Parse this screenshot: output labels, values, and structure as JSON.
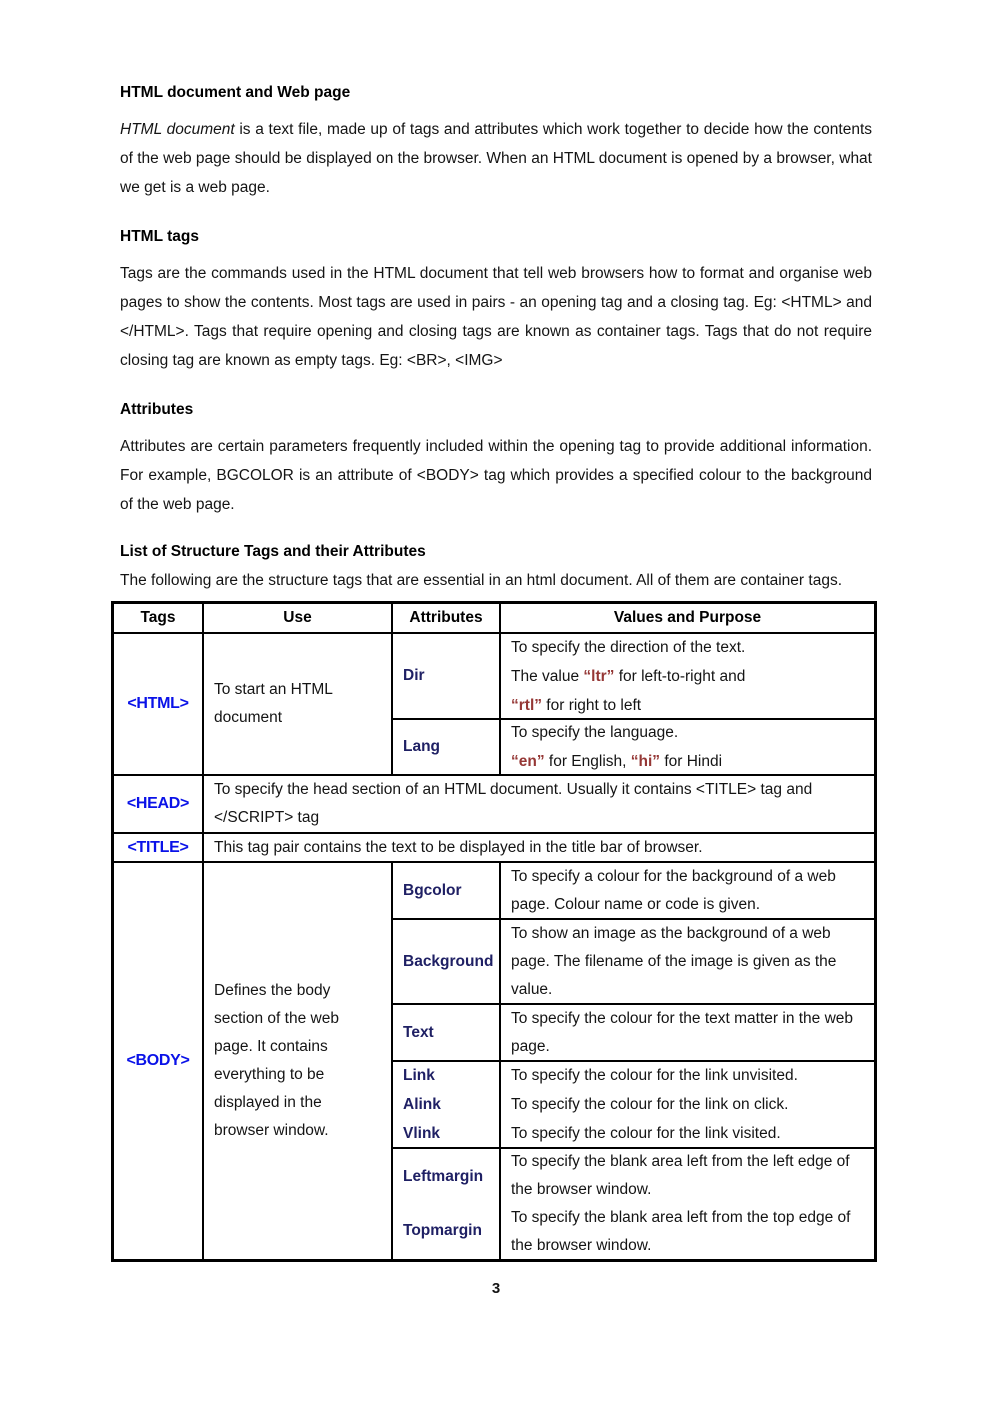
{
  "colors": {
    "tag_blue": "#0a12e8",
    "attr_navy": "#1f2064",
    "value_red": "#953735"
  },
  "sections": {
    "s1": {
      "heading": "HTML document and Web page",
      "para_italic": "HTML document",
      "para_rest": " is a text file, made up of tags and attributes which work together to decide how the contents of the web page should be displayed on the browser. When an HTML document is opened by a browser, what we get is a web page."
    },
    "s2": {
      "heading": "HTML tags",
      "para": "Tags are the commands used in the HTML document that tell web browsers how to format and organise web pages to show the contents. Most tags are used in pairs - an opening tag and a closing tag. Eg: <HTML> and </HTML>. Tags that require opening and closing tags are known as container tags. Tags that do not require closing tag are known as empty tags. Eg: <BR>, <IMG>"
    },
    "s3": {
      "heading": "Attributes",
      "para": "Attributes are certain parameters frequently included within the opening tag to provide additional information. For example, BGCOLOR is an attribute of <BODY> tag which provides a specified colour to the background of the web page."
    },
    "s4": {
      "heading": "List of Structure Tags and their Attributes",
      "para": "The following are the structure tags that are essential in an html document. All of them are container tags."
    }
  },
  "table": {
    "headers": {
      "tags": "Tags",
      "use": "Use",
      "attributes": "Attributes",
      "values": "Values and Purpose"
    },
    "html_row": {
      "tag": "<HTML>",
      "use": "To start an HTML document",
      "dir": {
        "attr": "Dir",
        "line1": "To specify the direction of the text.",
        "line2_pre": "The value ",
        "line2_red": "“ltr”",
        "line2_post": " for left-to-right and",
        "line3_red": "“rtl”",
        "line3_post": " for right to left"
      },
      "lang": {
        "attr": "Lang",
        "line1": "To specify the language.",
        "line2_red1": "“en”",
        "line2_mid": " for English, ",
        "line2_red2": "“hi”",
        "line2_post": " for Hindi"
      }
    },
    "head_row": {
      "tag": "<HEAD>",
      "desc": "To specify the head section of an HTML document. Usually it contains <TITLE> tag and </SCRIPT> tag"
    },
    "title_row": {
      "tag": "<TITLE>",
      "desc": "This tag pair contains the text to be displayed in the title bar of browser."
    },
    "body_row": {
      "tag": "<BODY>",
      "use": "Defines the body section of the web page. It contains everything to be displayed in the browser window.",
      "bgcolor": {
        "attr": "Bgcolor",
        "desc": "To specify a colour for the background of a web page. Colour name or code is given."
      },
      "background": {
        "attr": "Background",
        "desc": "To show an image as the background of a web page. The filename of the image is given as the value."
      },
      "text": {
        "attr": "Text",
        "desc": "To specify the colour for the text matter in the web page."
      },
      "links": {
        "attrs": [
          "Link",
          "Alink",
          "Vlink"
        ],
        "descs": [
          "To specify the colour for the link unvisited.",
          "To specify the colour for the link on click.",
          "To specify the colour for the link visited."
        ]
      },
      "margins": {
        "attrs": [
          "Leftmargin",
          "Topmargin"
        ],
        "descs": [
          "To specify the blank area left from the left edge of the browser window.",
          "To specify the blank area left from the top edge of the browser window."
        ]
      }
    }
  },
  "footer": {
    "page_number": "3"
  }
}
